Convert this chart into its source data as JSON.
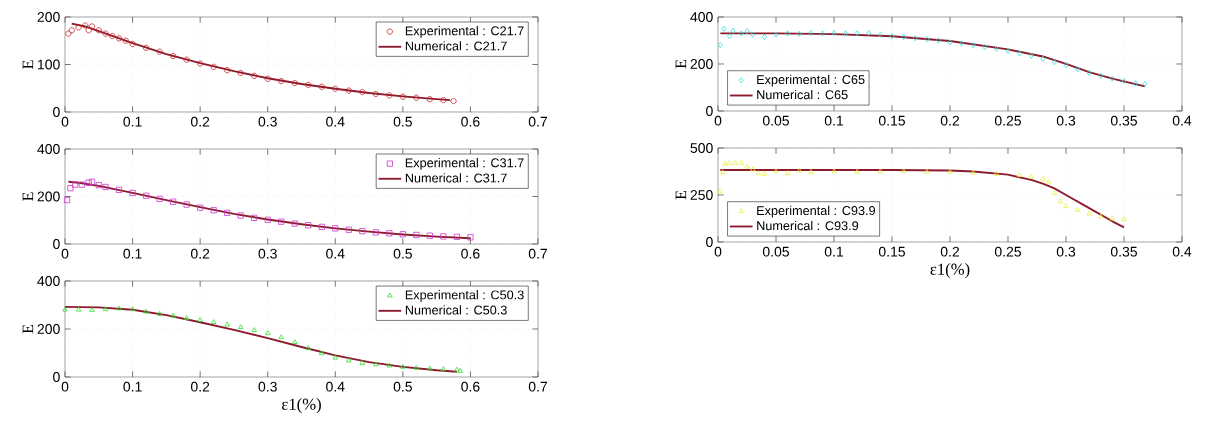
{
  "chart_data": [
    {
      "type": "scatter",
      "ylabel": "E",
      "xlim": [
        0,
        0.7
      ],
      "ylim": [
        0,
        200
      ],
      "xticks": [
        0,
        0.1,
        0.2,
        0.3,
        0.4,
        0.5,
        0.6,
        0.7
      ],
      "yticks": [
        0,
        100,
        200
      ],
      "grid": true,
      "legend": "top right",
      "series": [
        {
          "name": "Experimental : C21.7",
          "color": "#cc2222",
          "marker": "circle",
          "x": [
            0.005,
            0.01,
            0.02,
            0.03,
            0.035,
            0.04,
            0.05,
            0.06,
            0.07,
            0.08,
            0.09,
            0.1,
            0.12,
            0.14,
            0.16,
            0.18,
            0.2,
            0.22,
            0.24,
            0.26,
            0.28,
            0.3,
            0.32,
            0.34,
            0.36,
            0.38,
            0.4,
            0.42,
            0.44,
            0.46,
            0.48,
            0.5,
            0.52,
            0.54,
            0.56,
            0.575
          ],
          "values": [
            165,
            172,
            178,
            182,
            172,
            180,
            172,
            165,
            160,
            155,
            150,
            143,
            135,
            127,
            118,
            110,
            102,
            95,
            88,
            82,
            76,
            70,
            65,
            61,
            57,
            53,
            49,
            45,
            42,
            38,
            35,
            32,
            30,
            27,
            25,
            23
          ]
        },
        {
          "type": "line",
          "name": "Numerical : C21.7",
          "color": "#8b1a2b",
          "marker": "none",
          "x": [
            0.01,
            0.03,
            0.05,
            0.1,
            0.15,
            0.2,
            0.25,
            0.3,
            0.35,
            0.4,
            0.45,
            0.5,
            0.55,
            0.57
          ],
          "values": [
            186,
            180,
            170,
            145,
            122,
            103,
            86,
            71,
            59,
            49,
            40,
            33,
            27,
            25
          ]
        }
      ]
    },
    {
      "type": "scatter",
      "ylabel": "E",
      "xlim": [
        0,
        0.7
      ],
      "ylim": [
        0,
        400
      ],
      "xticks": [
        0,
        0.1,
        0.2,
        0.3,
        0.4,
        0.5,
        0.6,
        0.7
      ],
      "yticks": [
        0,
        200,
        400
      ],
      "grid": true,
      "legend": "top right",
      "series": [
        {
          "name": "Experimental : C31.7",
          "color": "#cc33cc",
          "marker": "square",
          "x": [
            0.003,
            0.008,
            0.015,
            0.025,
            0.035,
            0.04,
            0.05,
            0.06,
            0.08,
            0.1,
            0.12,
            0.14,
            0.16,
            0.18,
            0.2,
            0.22,
            0.24,
            0.26,
            0.28,
            0.3,
            0.32,
            0.34,
            0.36,
            0.38,
            0.4,
            0.42,
            0.44,
            0.46,
            0.48,
            0.5,
            0.52,
            0.54,
            0.56,
            0.58,
            0.6
          ],
          "values": [
            185,
            235,
            250,
            250,
            258,
            262,
            248,
            240,
            228,
            215,
            203,
            190,
            178,
            166,
            153,
            142,
            131,
            120,
            110,
            102,
            94,
            86,
            79,
            72,
            66,
            60,
            54,
            49,
            45,
            41,
            38,
            35,
            32,
            30,
            28
          ]
        },
        {
          "type": "line",
          "name": "Numerical : C31.7",
          "color": "#8b1a2b",
          "marker": "none",
          "x": [
            0.005,
            0.02,
            0.05,
            0.1,
            0.15,
            0.2,
            0.25,
            0.3,
            0.35,
            0.4,
            0.45,
            0.5,
            0.55,
            0.6
          ],
          "values": [
            262,
            258,
            245,
            215,
            185,
            155,
            127,
            103,
            83,
            66,
            52,
            40,
            31,
            24
          ]
        }
      ]
    },
    {
      "type": "scatter",
      "ylabel": "E",
      "xlabel": "ε1(%)",
      "xlim": [
        0,
        0.7
      ],
      "ylim": [
        0,
        400
      ],
      "xticks": [
        0,
        0.1,
        0.2,
        0.3,
        0.4,
        0.5,
        0.6,
        0.7
      ],
      "yticks": [
        0,
        200,
        400
      ],
      "grid": true,
      "legend": "top right",
      "series": [
        {
          "name": "Experimental : C50.3",
          "color": "#33dd33",
          "marker": "triangle",
          "x": [
            0,
            0.02,
            0.04,
            0.06,
            0.08,
            0.1,
            0.12,
            0.14,
            0.16,
            0.18,
            0.2,
            0.22,
            0.24,
            0.26,
            0.28,
            0.3,
            0.32,
            0.34,
            0.36,
            0.38,
            0.4,
            0.42,
            0.44,
            0.46,
            0.48,
            0.5,
            0.52,
            0.54,
            0.56,
            0.58,
            0.585
          ],
          "values": [
            280,
            280,
            278,
            282,
            285,
            282,
            272,
            262,
            255,
            245,
            237,
            228,
            218,
            207,
            195,
            182,
            165,
            145,
            120,
            98,
            80,
            68,
            58,
            52,
            47,
            42,
            38,
            35,
            32,
            30,
            25
          ]
        },
        {
          "type": "line",
          "name": "Numerical : C50.3",
          "color": "#8b1a2b",
          "marker": "none",
          "x": [
            0,
            0.05,
            0.1,
            0.15,
            0.2,
            0.25,
            0.3,
            0.35,
            0.4,
            0.45,
            0.5,
            0.55,
            0.58
          ],
          "values": [
            292,
            290,
            280,
            258,
            228,
            196,
            162,
            125,
            90,
            62,
            42,
            28,
            22
          ]
        }
      ]
    },
    {
      "type": "scatter",
      "ylabel": "E",
      "xlim": [
        0,
        0.4
      ],
      "ylim": [
        0,
        400
      ],
      "xticks": [
        0,
        0.05,
        0.1,
        0.15,
        0.2,
        0.25,
        0.3,
        0.35,
        0.4
      ],
      "yticks": [
        0,
        200,
        400
      ],
      "grid": true,
      "legend": "bottom left",
      "series": [
        {
          "name": "Experimental : C65",
          "color": "#33dddd",
          "marker": "diamond",
          "x": [
            0.002,
            0.005,
            0.01,
            0.013,
            0.02,
            0.025,
            0.03,
            0.04,
            0.05,
            0.06,
            0.07,
            0.08,
            0.09,
            0.1,
            0.11,
            0.12,
            0.13,
            0.14,
            0.15,
            0.16,
            0.17,
            0.18,
            0.19,
            0.2,
            0.21,
            0.22,
            0.23,
            0.24,
            0.25,
            0.26,
            0.27,
            0.28,
            0.29,
            0.3,
            0.31,
            0.32,
            0.33,
            0.34,
            0.35,
            0.36,
            0.368
          ],
          "values": [
            280,
            350,
            318,
            342,
            330,
            340,
            325,
            315,
            325,
            330,
            328,
            332,
            330,
            332,
            330,
            330,
            332,
            325,
            318,
            315,
            310,
            305,
            300,
            292,
            287,
            280,
            272,
            265,
            255,
            245,
            235,
            222,
            208,
            195,
            178,
            162,
            150,
            138,
            128,
            118,
            115
          ]
        },
        {
          "type": "line",
          "name": "Numerical : C65",
          "color": "#8b1a2b",
          "marker": "none",
          "x": [
            0.002,
            0.05,
            0.1,
            0.15,
            0.2,
            0.25,
            0.28,
            0.3,
            0.32,
            0.34,
            0.368
          ],
          "values": [
            330,
            330,
            327,
            318,
            298,
            262,
            232,
            200,
            165,
            138,
            105
          ]
        }
      ]
    },
    {
      "type": "scatter",
      "ylabel": "E",
      "xlabel": "ε1(%)",
      "xlim": [
        0,
        0.4
      ],
      "ylim": [
        0,
        500
      ],
      "xticks": [
        0,
        0.05,
        0.1,
        0.15,
        0.2,
        0.25,
        0.3,
        0.35,
        0.4
      ],
      "yticks": [
        0,
        250,
        500
      ],
      "grid": true,
      "legend": "bottom left",
      "series": [
        {
          "name": "Experimental : C93.9",
          "color": "#eeee44",
          "marker": "triangle",
          "x": [
            0.002,
            0.004,
            0.006,
            0.01,
            0.015,
            0.02,
            0.025,
            0.03,
            0.035,
            0.04,
            0.05,
            0.06,
            0.07,
            0.08,
            0.1,
            0.12,
            0.14,
            0.16,
            0.18,
            0.2,
            0.22,
            0.24,
            0.26,
            0.27,
            0.28,
            0.285,
            0.29,
            0.295,
            0.3,
            0.31,
            0.32,
            0.33,
            0.34,
            0.35
          ],
          "values": [
            270,
            370,
            415,
            420,
            420,
            420,
            400,
            385,
            365,
            362,
            375,
            365,
            378,
            372,
            375,
            372,
            375,
            375,
            372,
            372,
            368,
            362,
            355,
            345,
            335,
            320,
            260,
            215,
            190,
            170,
            150,
            135,
            125,
            120
          ]
        },
        {
          "type": "line",
          "name": "Numerical : C93.9",
          "color": "#8b1a2b",
          "marker": "none",
          "x": [
            0.002,
            0.05,
            0.1,
            0.15,
            0.2,
            0.22,
            0.25,
            0.27,
            0.28,
            0.29,
            0.3,
            0.32,
            0.34,
            0.35
          ],
          "values": [
            383,
            383,
            383,
            383,
            380,
            375,
            358,
            330,
            310,
            285,
            250,
            180,
            110,
            78
          ]
        }
      ]
    }
  ]
}
